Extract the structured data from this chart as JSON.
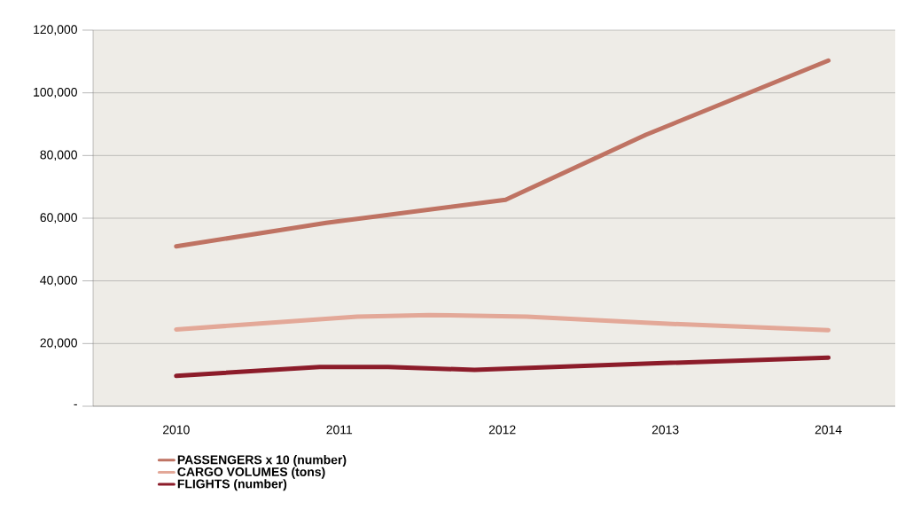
{
  "chart_data": {
    "type": "line",
    "xlim": [
      2009.49,
      2014.41
    ],
    "xticks": [
      2010,
      2011,
      2012,
      2013,
      2014
    ],
    "ylim": [
      0,
      120000
    ],
    "yticks": [
      {
        "value": 0,
        "label": "-"
      },
      {
        "value": 20000,
        "label": "20,000"
      },
      {
        "value": 40000,
        "label": "40,000"
      },
      {
        "value": 60000,
        "label": "60,000"
      },
      {
        "value": 80000,
        "label": "80,000"
      },
      {
        "value": 100000,
        "label": "100,000"
      },
      {
        "value": 120000,
        "label": "120,000"
      }
    ],
    "grid": "y",
    "legend": "bottom",
    "series": [
      {
        "name": "PASSENGERS x 10 (number)",
        "color": "#bf7363",
        "x": [
          2010,
          2010.92,
          2012.02,
          2012.88,
          2014
        ],
        "values": [
          51000,
          58500,
          65900,
          86600,
          110300
        ]
      },
      {
        "name": "CARGO VOLUMES (tons)",
        "color": "#e3a898",
        "x": [
          2010,
          2011.11,
          2011.55,
          2012.15,
          2012.93,
          2014
        ],
        "values": [
          24500,
          28600,
          29100,
          28600,
          26500,
          24300
        ]
      },
      {
        "name": "FLIGHTS (number)",
        "color": "#8c1c2a",
        "x": [
          2010,
          2010.88,
          2011.3,
          2011.83,
          2012.95,
          2014
        ],
        "values": [
          9700,
          12500,
          12500,
          11600,
          13700,
          15500
        ]
      }
    ]
  }
}
